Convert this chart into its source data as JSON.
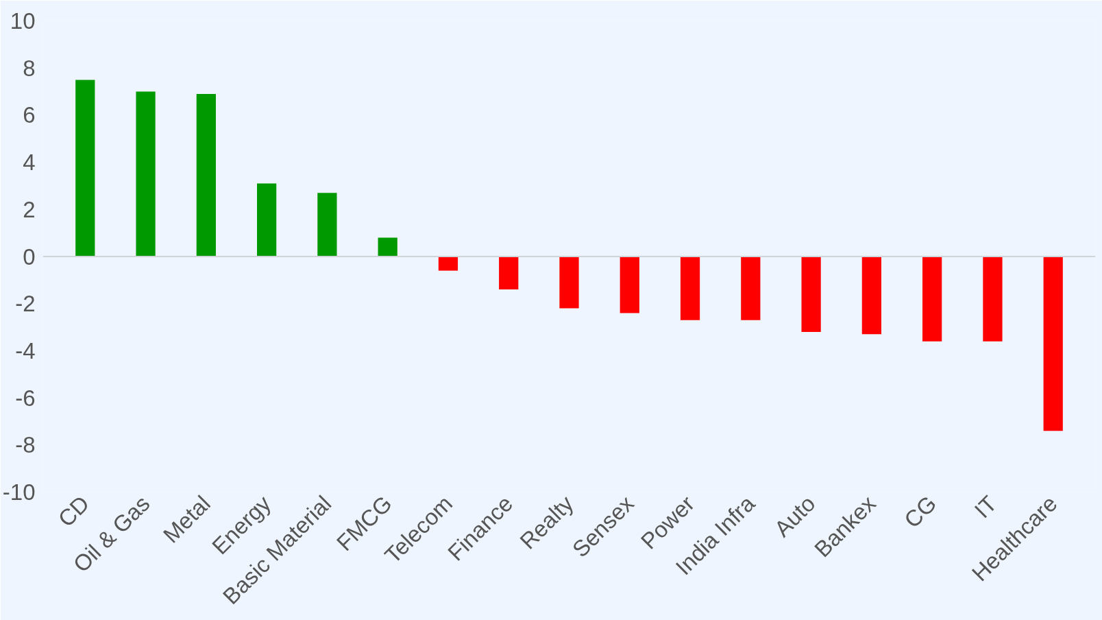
{
  "chart_data": {
    "type": "bar",
    "categories": [
      "CD",
      "Oil & Gas",
      "Metal",
      "Energy",
      "Basic Material",
      "FMCG",
      "Telecom",
      "Finance",
      "Realty",
      "Sensex",
      "Power",
      "India Infra",
      "Auto",
      "Bankex",
      "CG",
      "IT",
      "Healthcare"
    ],
    "values": [
      7.5,
      7.0,
      6.9,
      3.1,
      2.7,
      0.8,
      -0.6,
      -1.4,
      -2.2,
      -2.4,
      -2.7,
      -2.7,
      -3.2,
      -3.3,
      -3.6,
      -3.6,
      -7.4
    ],
    "colors": [
      "#009900",
      "#009900",
      "#009900",
      "#009900",
      "#009900",
      "#009900",
      "#ff0000",
      "#ff0000",
      "#ff0000",
      "#ff0000",
      "#ff0000",
      "#ff0000",
      "#ff0000",
      "#ff0000",
      "#ff0000",
      "#ff0000",
      "#ff0000"
    ],
    "ylim": [
      -10,
      10
    ],
    "yticks": [
      -10,
      -8,
      -6,
      -4,
      -2,
      0,
      2,
      4,
      6,
      8,
      10
    ]
  }
}
